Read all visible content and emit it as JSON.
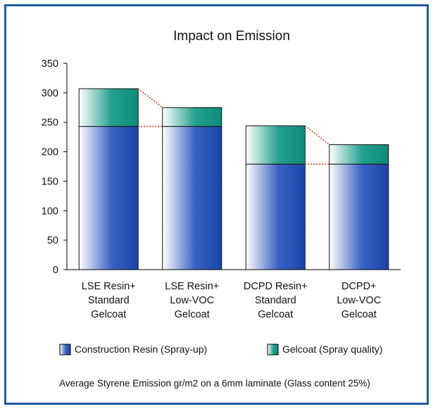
{
  "chart_data": {
    "type": "bar",
    "stacked": true,
    "title": "Impact on Emission",
    "xlabel": "",
    "ylabel": "",
    "ylim": [
      0,
      350
    ],
    "yticks": [
      0,
      50,
      100,
      150,
      200,
      250,
      300,
      350
    ],
    "categories": [
      [
        "LSE Resin+",
        "Standard",
        "Gelcoat"
      ],
      [
        "LSE Resin+",
        "Low-VOC",
        "Gelcoat"
      ],
      [
        "DCPD Resin+",
        "Standard",
        "Gelcoat"
      ],
      [
        "DCPD+",
        "Low-VOC",
        "Gelcoat"
      ]
    ],
    "series": [
      {
        "name": "Construction Resin (Spray-up)",
        "values": [
          243,
          243,
          179,
          179
        ],
        "color": "#1f4fb0"
      },
      {
        "name": "Gelcoat (Spray quality)",
        "values": [
          64,
          32,
          65,
          33
        ],
        "color": "#1a9a87"
      }
    ],
    "connector_color": "#e8502a",
    "grid": false,
    "legend_position": "bottom",
    "caption": "Average Styrene Emission gr/m2 on a 6mm laminate (Glass content 25%)"
  }
}
